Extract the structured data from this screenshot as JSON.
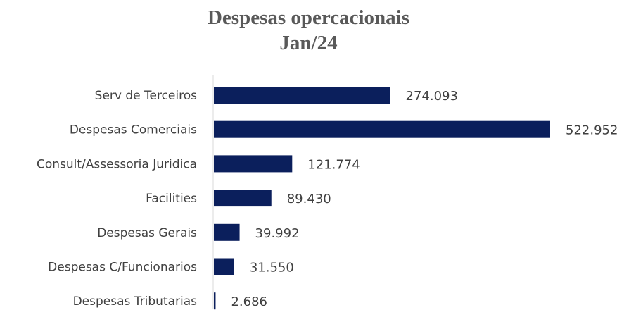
{
  "chart_data": {
    "type": "bar",
    "orientation": "horizontal",
    "title": "Despesas opercacionais",
    "subtitle": "Jan/24",
    "categories": [
      "Serv de Terceiros",
      "Despesas Comerciais",
      "Consult/Assessoria Juridica",
      "Facilities",
      "Despesas Gerais",
      "Despesas C/Funcionarios",
      "Despesas Tributarias"
    ],
    "values": [
      274093,
      522952,
      121774,
      89430,
      39992,
      31550,
      2686
    ],
    "value_labels": [
      "274.093",
      "522.952",
      "121.774",
      "89.430",
      "39.992",
      "31.550",
      "2.686"
    ],
    "xlim": [
      0,
      522952
    ],
    "grid": false,
    "legend": "none",
    "bar_color": "#0b1f5c"
  }
}
